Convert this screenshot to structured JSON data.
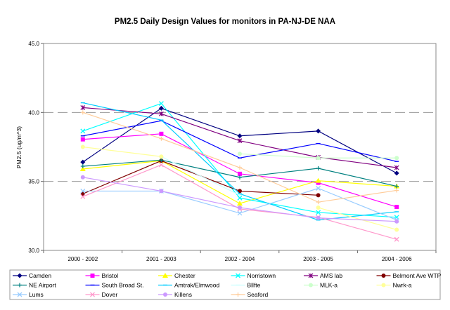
{
  "chart_data": {
    "type": "line",
    "title": "PM2.5 Daily Design Values for monitors in PA-NJ-DE NAA",
    "xlabel": "",
    "ylabel": "PM2.5 (ug/m^3)",
    "ylim": [
      30.0,
      45.0
    ],
    "yticks": [
      "30.0",
      "35.0",
      "40.0",
      "45.0"
    ],
    "ytick_values": [
      30,
      35,
      40,
      45
    ],
    "grid": "horizontal dashed at 35.0 and 40.0",
    "legend_position": "bottom",
    "categories": [
      "2000 - 2002",
      "2001 - 2003",
      "2002 - 2004",
      "2003 - 2005",
      "2004 - 2006"
    ],
    "series": [
      {
        "name": "Camden",
        "color": "#000080",
        "marker": "diamond",
        "values": [
          36.4,
          40.3,
          38.3,
          38.65,
          35.6
        ]
      },
      {
        "name": "Bristol",
        "color": "#ff00ff",
        "marker": "square",
        "values": [
          38.05,
          38.45,
          35.55,
          34.9,
          33.15
        ]
      },
      {
        "name": "Chester",
        "color": "#ffff00",
        "marker": "triangle",
        "values": [
          35.9,
          36.5,
          33.4,
          35.05,
          34.65
        ]
      },
      {
        "name": "Norristown",
        "color": "#00ffff",
        "marker": "x",
        "values": [
          38.65,
          40.65,
          33.8,
          32.75,
          32.4
        ]
      },
      {
        "name": "AMS lab",
        "color": "#800080",
        "marker": "star",
        "values": [
          40.35,
          39.9,
          37.95,
          36.75,
          36.0
        ]
      },
      {
        "name": "Belmont Ave WTP",
        "color": "#800000",
        "marker": "circle",
        "values": [
          34.1,
          36.5,
          34.3,
          34.0,
          null
        ]
      },
      {
        "name": "NE Airport",
        "color": "#008080",
        "marker": "plus",
        "values": [
          36.1,
          36.55,
          35.3,
          35.95,
          34.65
        ]
      },
      {
        "name": "South Broad St.",
        "color": "#0000ff",
        "marker": "dash",
        "values": [
          38.3,
          39.4,
          36.7,
          37.75,
          36.45
        ]
      },
      {
        "name": "Amtrak/Elmwood",
        "color": "#00ccff",
        "marker": "dash",
        "values": [
          40.7,
          39.45,
          34.1,
          32.2,
          32.8
        ]
      },
      {
        "name": "Bllfte",
        "color": "#ccffff",
        "marker": "dash",
        "values": [
          null,
          36.8,
          34.0,
          null,
          null
        ]
      },
      {
        "name": "MLK-a",
        "color": "#ccffcc",
        "marker": "circle",
        "values": [
          null,
          null,
          37.0,
          36.7,
          36.7
        ]
      },
      {
        "name": "Nwrk-a",
        "color": "#ffff99",
        "marker": "circle",
        "values": [
          37.5,
          36.8,
          null,
          33.1,
          31.5
        ]
      },
      {
        "name": "Lums",
        "color": "#99ccff",
        "marker": "x",
        "values": [
          34.3,
          34.3,
          32.7,
          34.5,
          32.2
        ]
      },
      {
        "name": "Dover",
        "color": "#ff99cc",
        "marker": "x",
        "values": [
          33.9,
          36.2,
          33.0,
          32.4,
          30.8
        ]
      },
      {
        "name": "Killens",
        "color": "#cc99ff",
        "marker": "circle",
        "values": [
          35.3,
          34.3,
          33.1,
          32.35,
          32.1
        ]
      },
      {
        "name": "Seaford",
        "color": "#ffcc99",
        "marker": "plus",
        "values": [
          40.0,
          38.1,
          36.0,
          33.5,
          34.35
        ]
      }
    ]
  }
}
